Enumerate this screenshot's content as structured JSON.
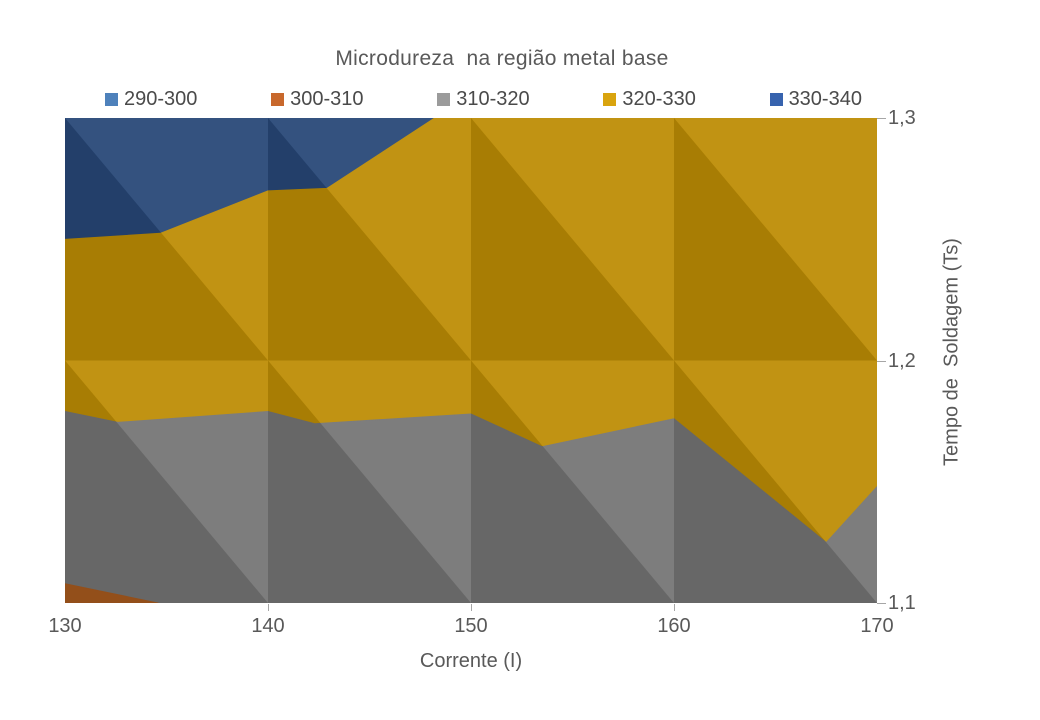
{
  "chart_data": {
    "type": "contour",
    "title": "Microdureza  na região metal base",
    "xlabel": "Corrente (I)",
    "ylabel": "Tempo de  Soldagem (Ts)",
    "x_range": [
      130,
      170
    ],
    "y_range": [
      1.1,
      1.3
    ],
    "x_ticks": {
      "labels": [
        "130",
        "140",
        "150",
        "160",
        "170"
      ],
      "values": [
        130,
        140,
        150,
        160,
        170
      ]
    },
    "x_tickmarks": [
      140,
      150,
      160
    ],
    "y_ticks": {
      "labels": [
        "1,3",
        "1,2",
        "1,1"
      ],
      "values": [
        1.3,
        1.2,
        1.1
      ]
    },
    "y_tickmarks": [
      1.3,
      1.2,
      1.1
    ],
    "legend": [
      {
        "label": "290-300",
        "color": "#4E81BB"
      },
      {
        "label": "300-310",
        "color": "#C8682C"
      },
      {
        "label": "310-320",
        "color": "#9B9B9B"
      },
      {
        "label": "320-330",
        "color": "#D9A40E"
      },
      {
        "label": "330-340",
        "color": "#3763AE"
      }
    ],
    "grid": {
      "x": [
        130,
        140,
        150,
        160,
        170
      ],
      "y": [
        1.1,
        1.2,
        1.3
      ],
      "values_estimated_by_Ts_row": {
        "1.1": [
          308.9,
          311.3,
          312.4,
          316.2,
          319.6
        ],
        "1.2": [
          323.0,
          322.3,
          322.1,
          321.2,
          320.4
        ],
        "1.3": [
          337.0,
          333.3,
          329.3,
          328.0,
          326.0
        ]
      }
    },
    "bands": [
      {
        "label": "330-340",
        "color": "#284878",
        "points": [
          [
            130,
            1.3
          ],
          [
            148.2,
            1.3
          ],
          [
            142.9,
            1.271
          ],
          [
            140,
            1.27
          ],
          [
            134.7,
            1.2525
          ],
          [
            130,
            1.25
          ]
        ]
      },
      {
        "label": "320-330",
        "color": "#BE8D05",
        "points": [
          [
            130,
            1.25
          ],
          [
            134.7,
            1.2525
          ],
          [
            140,
            1.27
          ],
          [
            142.9,
            1.271
          ],
          [
            148.2,
            1.3
          ],
          [
            170,
            1.3
          ],
          [
            170,
            1.148
          ],
          [
            167.5,
            1.125
          ],
          [
            160,
            1.176
          ],
          [
            153.5,
            1.1645
          ],
          [
            150,
            1.178
          ],
          [
            142.3,
            1.174
          ],
          [
            140,
            1.179
          ],
          [
            132.6,
            1.1745
          ],
          [
            130,
            1.179
          ]
        ]
      },
      {
        "label": "310-320",
        "color": "#757575",
        "points": [
          [
            130,
            1.179
          ],
          [
            132.6,
            1.1745
          ],
          [
            140,
            1.179
          ],
          [
            142.3,
            1.174
          ],
          [
            150,
            1.178
          ],
          [
            153.5,
            1.1645
          ],
          [
            160,
            1.176
          ],
          [
            167.5,
            1.125
          ],
          [
            170,
            1.148
          ],
          [
            170,
            1.1
          ],
          [
            134.6,
            1.1
          ],
          [
            130,
            1.108
          ]
        ]
      },
      {
        "label": "300-310",
        "color": "#A65A1E",
        "points": [
          [
            130,
            1.108
          ],
          [
            134.6,
            1.1
          ],
          [
            130,
            1.1
          ]
        ]
      }
    ],
    "shading": {
      "dark": "rgba(0,0,0,0.115)",
      "light": "rgba(255,255,255,0.06)"
    }
  }
}
